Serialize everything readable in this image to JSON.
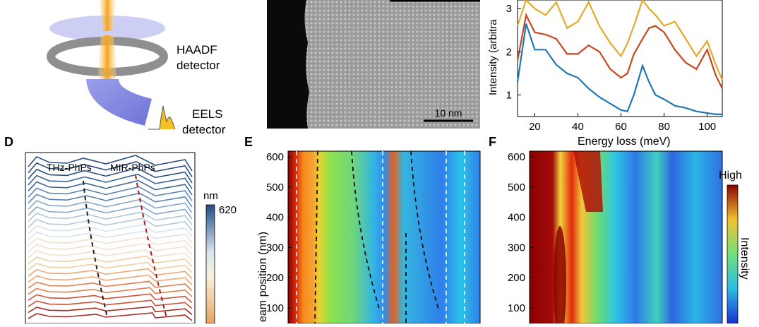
{
  "panel_labels": {
    "d": "D",
    "e": "E",
    "f": "F"
  },
  "schematic": {
    "haadf_label": "HAADF",
    "haadf_label2": "detector",
    "eels_label": "EELS",
    "eels_label2": "detector"
  },
  "stem_image": {
    "scale_bar": "10 nm"
  },
  "colors": {
    "blue_curve": "#1f77b4",
    "red_curve": "#c8461e",
    "yellow_curve": "#e2a92a",
    "thz_label": "#2a3f6b",
    "mir_label": "#a41e1e"
  },
  "panel_d": {
    "thz_label": "THz-PhPs",
    "mir_label": "MIR-PhPs",
    "unit": "nm",
    "colorbar_max": "620"
  },
  "panel_e": {
    "ylabel": "eam position (nm)",
    "yticks": [
      "600",
      "500",
      "400",
      "300",
      "200",
      "100"
    ]
  },
  "panel_f": {
    "yticks": [
      "600",
      "500",
      "400",
      "300",
      "200",
      "100"
    ],
    "colorbar_high": "High",
    "colorbar_label": "Intensity"
  },
  "chart_data": [
    {
      "type": "line",
      "xlabel": "Energy loss (meV)",
      "ylabel": "Intensity (arbitra",
      "xlim": [
        12,
        107
      ],
      "ylim": [
        0.5,
        3.2
      ],
      "xticks": [
        "20",
        "40",
        "60",
        "80",
        "100"
      ],
      "yticks": [
        "1",
        "2",
        "3"
      ],
      "x": [
        12,
        16,
        20,
        25,
        30,
        35,
        40,
        45,
        50,
        55,
        60,
        63,
        66,
        70,
        73,
        76,
        80,
        85,
        90,
        95,
        100,
        104,
        107
      ],
      "series": [
        {
          "color": "#1f77b4",
          "values": [
            1.3,
            2.65,
            2.05,
            2.05,
            1.7,
            1.5,
            1.4,
            1.15,
            0.95,
            0.8,
            0.65,
            0.62,
            1.0,
            1.68,
            1.3,
            1.0,
            0.9,
            0.75,
            0.7,
            0.62,
            0.58,
            0.55,
            0.55
          ]
        },
        {
          "color": "#c8461e",
          "values": [
            1.8,
            2.85,
            2.45,
            2.4,
            2.3,
            1.95,
            1.95,
            2.15,
            2.0,
            1.6,
            1.4,
            1.5,
            1.95,
            2.3,
            2.55,
            2.6,
            2.45,
            2.05,
            1.75,
            1.6,
            2.05,
            1.45,
            1.15
          ]
        },
        {
          "color": "#e2a92a",
          "values": [
            2.6,
            3.2,
            3.0,
            2.85,
            3.15,
            2.55,
            2.7,
            3.15,
            2.6,
            2.2,
            1.9,
            2.2,
            2.6,
            3.2,
            3.0,
            2.85,
            2.6,
            2.7,
            2.3,
            1.9,
            2.25,
            1.7,
            1.35
          ]
        }
      ]
    }
  ]
}
